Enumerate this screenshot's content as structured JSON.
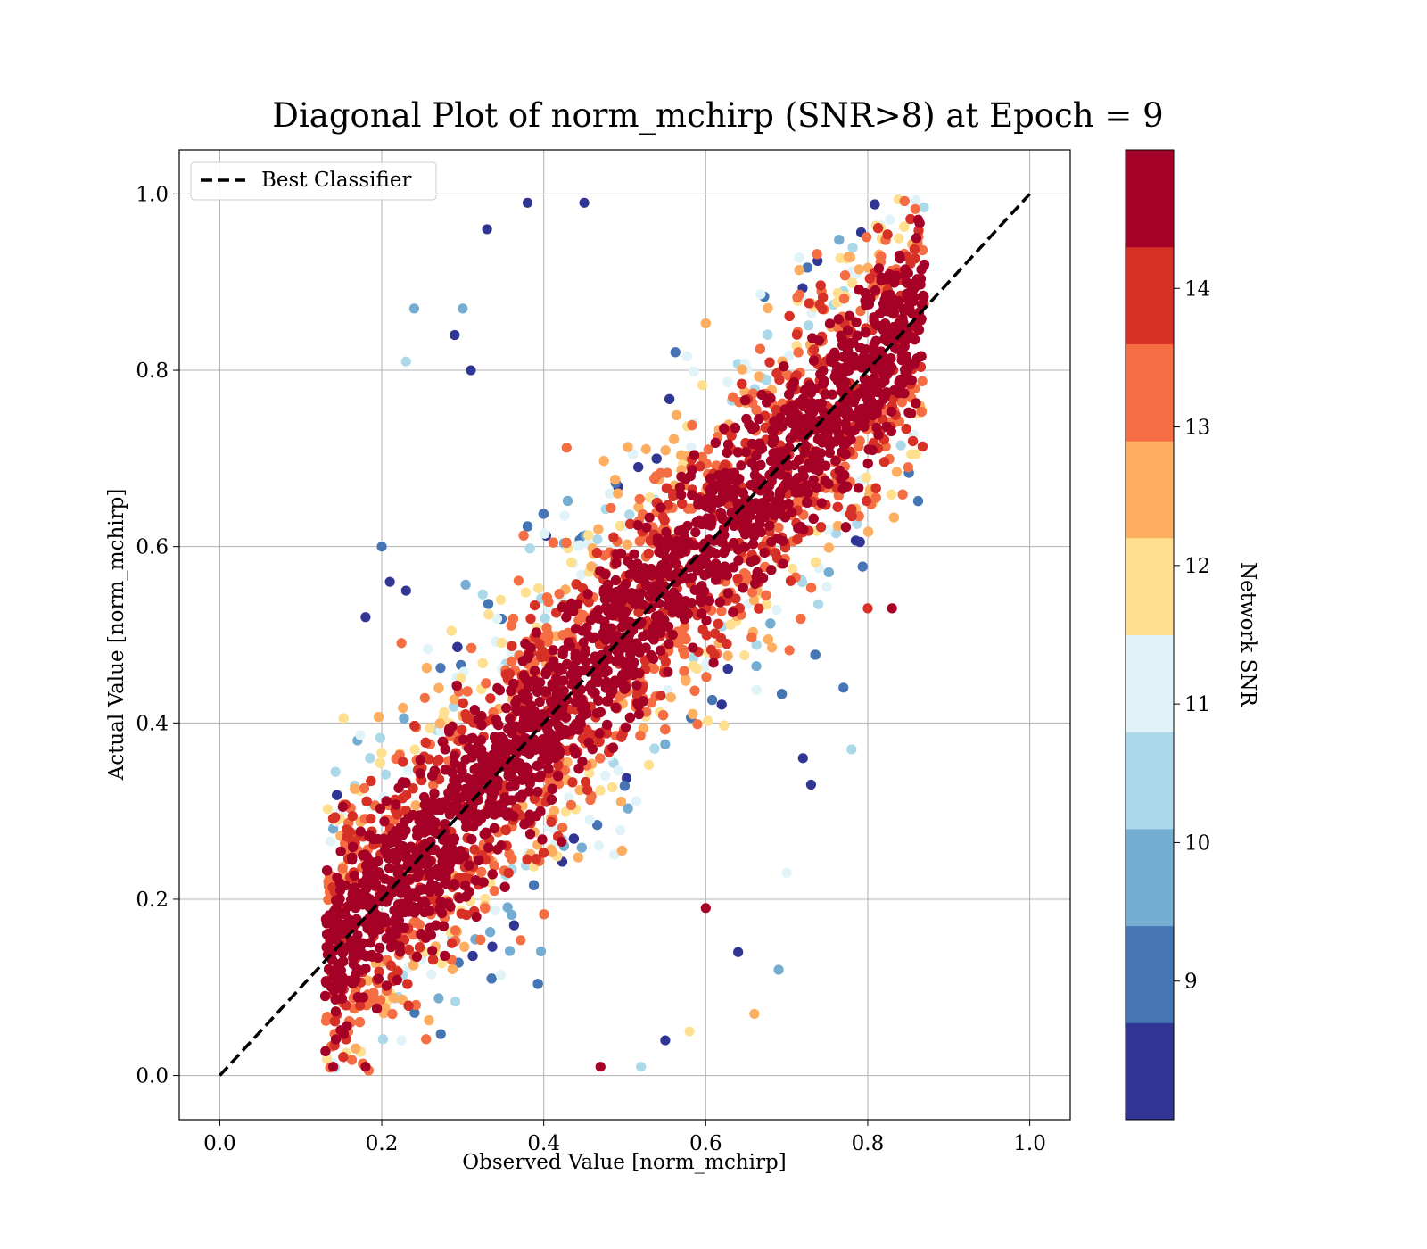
{
  "chart_data": {
    "type": "scatter",
    "title": "Diagonal Plot of norm_mchirp (SNR>8) at Epoch = 9",
    "xlabel": "Observed Value [norm_mchirp]",
    "ylabel": "Actual Value [norm_mchirp]",
    "xlim": [
      -0.05,
      1.05
    ],
    "ylim": [
      -0.05,
      1.05
    ],
    "xticks": [
      "0.0",
      "0.2",
      "0.4",
      "0.6",
      "0.8",
      "1.0"
    ],
    "yticks": [
      "0.0",
      "0.2",
      "0.4",
      "0.6",
      "0.8",
      "1.0"
    ],
    "grid": true,
    "legend": {
      "position": "upper-left",
      "entries": [
        "Best Classifier"
      ]
    },
    "reference_line": {
      "label": "Best Classifier",
      "x": [
        0.0,
        1.0
      ],
      "y": [
        0.0,
        1.0
      ],
      "style": "dashed",
      "color": "#000000"
    },
    "colorbar": {
      "label": "Network SNR",
      "range": [
        8.0,
        15.0
      ],
      "ticks": [
        "9",
        "10",
        "11",
        "12",
        "13",
        "14"
      ],
      "colors": [
        "#313695",
        "#4575b4",
        "#74add1",
        "#abd9e9",
        "#e0f3f8",
        "#fee090",
        "#fdae61",
        "#f46d43",
        "#d73027",
        "#a50026"
      ]
    },
    "point_cloud": {
      "description_of_density": "dense band along diagonal, y ≈ x ± 0.2, x from 0.13 to 0.87",
      "x_range": [
        0.13,
        0.87
      ],
      "y_range": [
        0.0,
        1.0
      ]
    },
    "points": [
      [
        0.18,
        0.52,
        8.2
      ],
      [
        0.24,
        0.87,
        9.6
      ],
      [
        0.23,
        0.81,
        10.6
      ],
      [
        0.38,
        0.99,
        8.3
      ],
      [
        0.45,
        0.99,
        8.5
      ],
      [
        0.33,
        0.96,
        8.3
      ],
      [
        0.29,
        0.84,
        8.3
      ],
      [
        0.3,
        0.87,
        10.0
      ],
      [
        0.31,
        0.8,
        8.3
      ],
      [
        0.2,
        0.6,
        9.0
      ],
      [
        0.21,
        0.56,
        8.3
      ],
      [
        0.23,
        0.55,
        8.4
      ],
      [
        0.14,
        0.28,
        9.6
      ],
      [
        0.15,
        0.3,
        11.2
      ],
      [
        0.17,
        0.38,
        9.8
      ],
      [
        0.73,
        0.33,
        8.3
      ],
      [
        0.72,
        0.36,
        8.7
      ],
      [
        0.77,
        0.44,
        9.0
      ],
      [
        0.78,
        0.37,
        10.5
      ],
      [
        0.7,
        0.23,
        11.0
      ],
      [
        0.69,
        0.12,
        9.6
      ],
      [
        0.66,
        0.07,
        12.8
      ],
      [
        0.64,
        0.14,
        8.5
      ],
      [
        0.6,
        0.19,
        14.6
      ],
      [
        0.58,
        0.05,
        12.0
      ],
      [
        0.55,
        0.04,
        8.5
      ],
      [
        0.52,
        0.01,
        10.5
      ],
      [
        0.47,
        0.01,
        14.6
      ],
      [
        0.14,
        0.01,
        14.6
      ],
      [
        0.18,
        0.01,
        14.6
      ],
      [
        0.86,
        0.95,
        14.6
      ],
      [
        0.87,
        0.92,
        14.6
      ],
      [
        0.85,
        0.91,
        14.6
      ],
      [
        0.85,
        0.69,
        13.2
      ],
      [
        0.83,
        0.53,
        14.6
      ],
      [
        0.8,
        0.53,
        14.2
      ]
    ]
  }
}
